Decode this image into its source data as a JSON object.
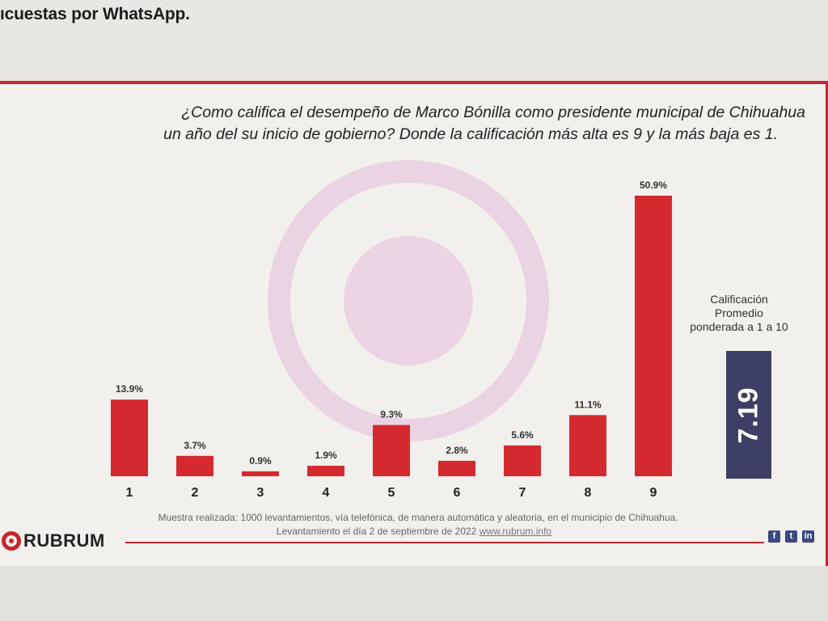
{
  "header": {
    "top_text": "ıcuestas por WhatsApp."
  },
  "slide": {
    "question_line1": "¿Como califica el desempeño de Marco Bónilla como presidente municipal de Chihuahua",
    "question_line2": "un año del su inicio de gobierno? Donde la calificación más alta es 9 y la más baja es 1.",
    "average": {
      "label_line1": "Calificación",
      "label_line2": "Promedio",
      "label_line3": "ponderada a 1 a 10",
      "value": "7.19"
    },
    "footer_line1": "Muestra realizada: 1000 levantamientos, vía telefónica, de manera automática y aleatoria, en el municipio de Chihuahua.",
    "footer_line2": "Levantamiento el día 2 de septiembre  de 2022",
    "footer_url": "www.rubrum.info",
    "logo_text": "RUBRUM",
    "social_icons": [
      "facebook-icon",
      "twitter-icon",
      "linkedin-icon"
    ]
  },
  "colors": {
    "bar": "#d42a2f",
    "accent": "#c7262c",
    "avg_box": "#3e3f66"
  },
  "chart_data": {
    "type": "bar",
    "categories": [
      "1",
      "2",
      "3",
      "4",
      "5",
      "6",
      "7",
      "8",
      "9"
    ],
    "values": [
      13.9,
      3.7,
      0.9,
      1.9,
      9.3,
      2.8,
      5.6,
      11.1,
      50.9
    ],
    "value_labels": [
      "13.9%",
      "3.7%",
      "0.9%",
      "1.9%",
      "9.3%",
      "2.8%",
      "5.6%",
      "11.1%",
      "50.9%"
    ],
    "ylim": [
      0,
      50.9
    ],
    "grid": false,
    "legend": "none"
  }
}
